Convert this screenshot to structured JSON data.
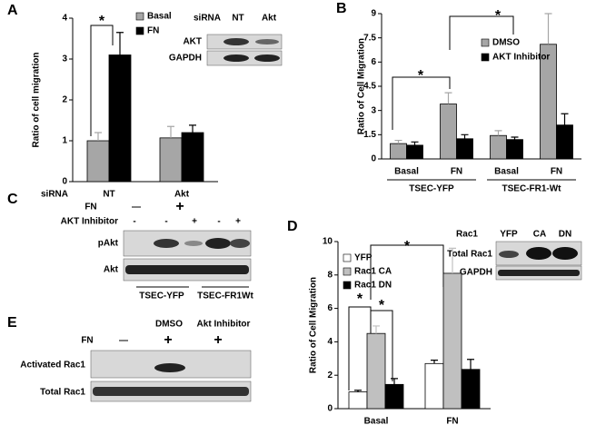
{
  "panels": [
    "A",
    "B",
    "C",
    "D",
    "E"
  ],
  "chart_data": [
    {
      "type": "bar",
      "ylabel": "Ratio of cell migration",
      "xlabel": "siRNA",
      "categories": [
        "NT",
        "Akt"
      ],
      "ylim": [
        0,
        4
      ],
      "yticks": [
        0,
        1,
        2,
        3,
        4
      ],
      "series": [
        {
          "name": "Basal",
          "color": "#a6a6a6",
          "values": [
            1.0,
            1.07
          ],
          "errors": [
            0.2,
            0.28
          ]
        },
        {
          "name": "FN",
          "color": "#000000",
          "values": [
            3.1,
            1.2
          ],
          "errors": [
            0.55,
            0.18
          ]
        }
      ],
      "annotations": [
        "*"
      ]
    },
    {
      "type": "bar",
      "ylabel": "Ratio of Cell Migration",
      "categories": [
        "Basal",
        "FN",
        "Basal",
        "FN"
      ],
      "group_labels": [
        "TSEC-YFP",
        "TSEC-FR1-Wt"
      ],
      "ylim": [
        0,
        9
      ],
      "yticks": [
        0,
        1.5,
        3,
        4.5,
        6,
        7.5,
        9
      ],
      "series": [
        {
          "name": "DMSO",
          "color": "#a6a6a6",
          "values": [
            0.95,
            3.4,
            1.45,
            7.1
          ],
          "errors": [
            0.2,
            0.7,
            0.3,
            1.9
          ]
        },
        {
          "name": "AKT Inhibitor",
          "color": "#000000",
          "values": [
            0.85,
            1.25,
            1.2,
            2.1
          ],
          "errors": [
            0.2,
            0.25,
            0.15,
            0.7
          ]
        }
      ],
      "annotations": [
        "*",
        "*"
      ]
    },
    {
      "type": "bar",
      "ylabel": "Ratio of Cell Migration",
      "categories": [
        "Basal",
        "FN"
      ],
      "ylim": [
        0,
        10
      ],
      "yticks": [
        0,
        2,
        4,
        6,
        8,
        10
      ],
      "series": [
        {
          "name": "YFP",
          "color": "#ffffff",
          "values": [
            1.0,
            2.7
          ],
          "errors": [
            0.1,
            0.2
          ]
        },
        {
          "name": "Rac1 CA",
          "color": "#c0c0c0",
          "values": [
            4.5,
            8.1
          ],
          "errors": [
            0.45,
            1.5
          ]
        },
        {
          "name": "Rac1 DN",
          "color": "#000000",
          "values": [
            1.45,
            2.35
          ],
          "errors": [
            0.35,
            0.6
          ]
        }
      ],
      "annotations": [
        "*",
        "*",
        "*"
      ]
    }
  ],
  "blots": {
    "A": {
      "header": "siRNA",
      "lanes": [
        "NT",
        "Akt"
      ],
      "rows": [
        "AKT",
        "GAPDH"
      ]
    },
    "C": {
      "treatment": "FN",
      "treatment_marks": [
        "—",
        "+"
      ],
      "inhibitor": "AKT Inhibitor",
      "inhibitor_marks": [
        "-",
        "-",
        "+",
        "-",
        "+"
      ],
      "rows": [
        "pAkt",
        "Akt"
      ],
      "groups": [
        "TSEC-YFP",
        "TSEC-FR1Wt"
      ]
    },
    "D": {
      "header": "Rac1",
      "lanes": [
        "YFP",
        "CA",
        "DN"
      ],
      "rows": [
        "Total Rac1",
        "GAPDH"
      ]
    },
    "E": {
      "groups": [
        "DMSO",
        "Akt Inhibitor"
      ],
      "treatment": "FN",
      "treatment_marks": [
        "—",
        "+",
        "+"
      ],
      "rows": [
        "Activated Rac1",
        "Total Rac1"
      ]
    }
  }
}
